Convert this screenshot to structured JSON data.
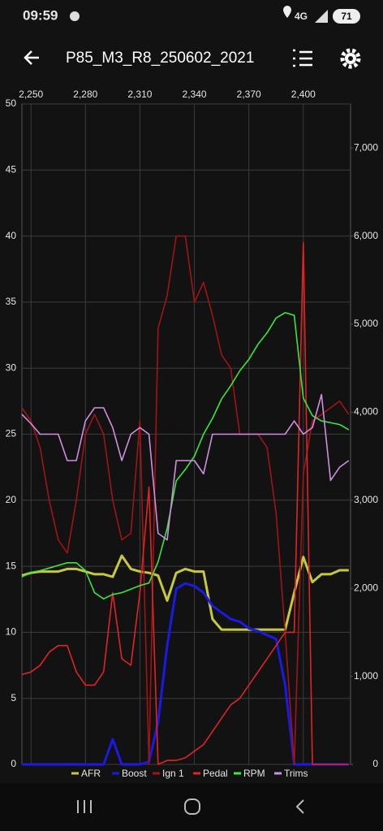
{
  "status_bar": {
    "time": "09:59",
    "network": "4G",
    "battery": "71"
  },
  "app_bar": {
    "title": "P85_M3_R8_250602_2021"
  },
  "chart_data": {
    "type": "line",
    "x": [
      2245,
      2250,
      2255,
      2260,
      2265,
      2270,
      2275,
      2280,
      2285,
      2290,
      2295,
      2300,
      2305,
      2310,
      2315,
      2320,
      2325,
      2330,
      2335,
      2340,
      2345,
      2350,
      2355,
      2360,
      2365,
      2370,
      2375,
      2380,
      2385,
      2390,
      2395,
      2400,
      2405,
      2410,
      2415,
      2420,
      2425
    ],
    "xlim": [
      2245,
      2426
    ],
    "xticks": [
      {
        "value": 2250,
        "label": "2,250"
      },
      {
        "value": 2280,
        "label": "2,280"
      },
      {
        "value": 2310,
        "label": "2,310"
      },
      {
        "value": 2340,
        "label": "2,340"
      },
      {
        "value": 2370,
        "label": "2,370"
      },
      {
        "value": 2400,
        "label": "2,400"
      }
    ],
    "ylim": [
      0,
      50
    ],
    "yticks": [
      0,
      5,
      10,
      15,
      20,
      25,
      30,
      35,
      40,
      45,
      50
    ],
    "y2lim": [
      0,
      7500
    ],
    "y2ticks": [
      0,
      {
        "value": 1000,
        "label": "1,000"
      },
      {
        "value": 2000,
        "label": "2,000"
      },
      {
        "value": 3000,
        "label": "3,000"
      },
      {
        "value": 4000,
        "label": "4,000"
      },
      {
        "value": 5000,
        "label": "5,000"
      },
      {
        "value": 6000,
        "label": "6,000"
      },
      {
        "value": 7000,
        "label": "7,000"
      }
    ],
    "grid": true,
    "legend": "bottom",
    "series": [
      {
        "name": "AFR",
        "color": "#c8c83c",
        "values": [
          14.3,
          14.5,
          14.6,
          14.6,
          14.6,
          14.8,
          14.8,
          14.6,
          14.4,
          14.4,
          14.2,
          15.8,
          14.8,
          14.6,
          14.5,
          14.3,
          12.4,
          14.5,
          14.8,
          14.6,
          14.6,
          11,
          10.2,
          10.2,
          10.2,
          10.2,
          10.2,
          10.2,
          10.2,
          10.2,
          13,
          15.7,
          13.8,
          14.4,
          14.4,
          14.7,
          14.7
        ]
      },
      {
        "name": "Boost",
        "color": "#1a1ae6",
        "values": [
          0,
          0,
          0,
          0,
          0,
          0,
          0,
          0,
          0,
          0,
          1.9,
          0,
          0,
          0,
          0.2,
          3.2,
          9,
          13.3,
          13.7,
          13.5,
          13,
          12,
          11.5,
          11,
          10.8,
          10.3,
          10.1,
          9.8,
          9.5,
          6,
          0,
          0,
          0,
          0,
          0,
          0,
          0
        ]
      },
      {
        "name": "Ign 1",
        "color": "#a01414",
        "values": [
          27,
          26,
          24,
          20,
          17,
          16,
          20,
          25,
          26.5,
          25,
          20,
          17,
          17.5,
          26,
          0,
          33,
          35.5,
          40,
          40,
          35,
          36.5,
          34,
          31,
          30,
          25,
          25,
          25,
          24,
          19,
          10,
          0,
          22,
          26,
          26.5,
          27,
          27.5,
          26.5
        ]
      },
      {
        "name": "Pedal",
        "color": "#e02424",
        "values": [
          6.8,
          7,
          7.5,
          8.5,
          9,
          9,
          7,
          6,
          6,
          7,
          13,
          8,
          7.5,
          13,
          21,
          0,
          0.3,
          0.3,
          0.5,
          1,
          1.5,
          2.5,
          3.5,
          4.5,
          5,
          6,
          7,
          8,
          9,
          10,
          10,
          39.5,
          0,
          0,
          0,
          0,
          0
        ]
      },
      {
        "name": "RPM",
        "color": "#3ce63c",
        "axis": "y2",
        "values": [
          2130,
          2180,
          2200,
          2230,
          2260,
          2290,
          2290,
          2200,
          1950,
          1880,
          1930,
          1950,
          1990,
          2030,
          2060,
          2300,
          2680,
          3220,
          3350,
          3500,
          3750,
          3930,
          4150,
          4300,
          4470,
          4600,
          4770,
          4900,
          5070,
          5130,
          5100,
          4160,
          3960,
          3900,
          3880,
          3860,
          3800
        ]
      },
      {
        "name": "Trims",
        "color": "#d08ee0",
        "values": [
          26.5,
          25.8,
          25,
          25,
          25,
          23,
          23,
          26,
          27,
          27,
          25.5,
          23,
          25,
          25.5,
          25,
          17.5,
          17,
          23,
          23,
          23,
          22,
          25,
          25,
          25,
          25,
          25,
          25,
          25,
          25,
          25,
          26,
          25,
          25.5,
          28,
          21.5,
          22.5,
          23
        ]
      }
    ]
  }
}
